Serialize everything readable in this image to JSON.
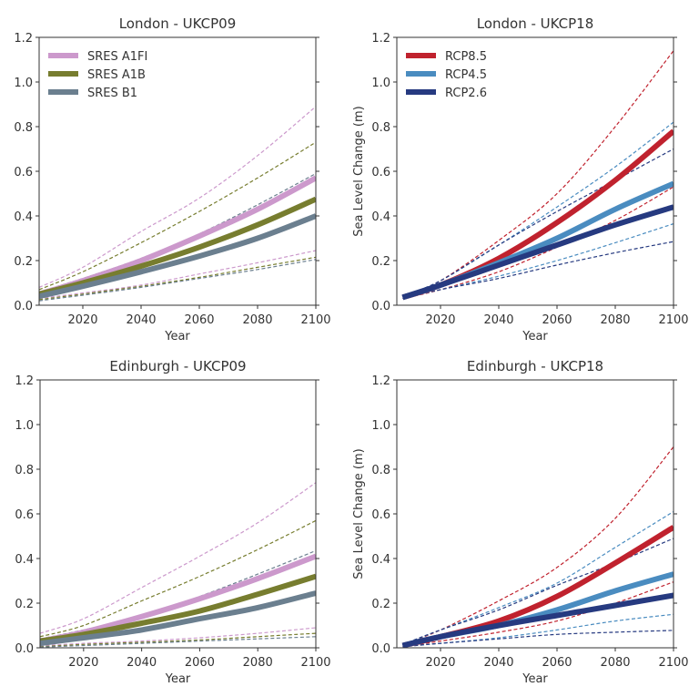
{
  "chart_data": [
    {
      "type": "line",
      "title": "London - UKCP09",
      "xlabel": "Year",
      "ylabel": "",
      "xlim": [
        2005,
        2100
      ],
      "ylim": [
        0,
        1.2
      ],
      "xticks": [
        "2020",
        "2040",
        "2060",
        "2080",
        "2100"
      ],
      "yticks": [
        "0.0",
        "0.2",
        "0.4",
        "0.6",
        "0.8",
        "1.0",
        "1.2"
      ],
      "legend": "top-left",
      "x": [
        2005,
        2020,
        2040,
        2060,
        2080,
        2100
      ],
      "series": [
        {
          "name": "SRES A1FI",
          "color": "#cc99cc",
          "central": [
            0.05,
            0.11,
            0.2,
            0.31,
            0.43,
            0.57
          ],
          "upper": [
            0.08,
            0.17,
            0.33,
            0.48,
            0.67,
            0.89
          ],
          "lower": [
            0.03,
            0.055,
            0.09,
            0.14,
            0.19,
            0.245
          ]
        },
        {
          "name": "SRES A1B",
          "color": "#777d2f",
          "central": [
            0.05,
            0.1,
            0.175,
            0.26,
            0.36,
            0.475
          ],
          "upper": [
            0.07,
            0.15,
            0.28,
            0.42,
            0.57,
            0.73
          ],
          "lower": [
            0.025,
            0.05,
            0.085,
            0.125,
            0.17,
            0.215
          ]
        },
        {
          "name": "SRES B1",
          "color": "#6b7f8f",
          "central": [
            0.04,
            0.085,
            0.15,
            0.22,
            0.3,
            0.4
          ],
          "upper": [
            0.06,
            0.12,
            0.21,
            0.32,
            0.45,
            0.59
          ],
          "lower": [
            0.02,
            0.045,
            0.08,
            0.12,
            0.16,
            0.205
          ]
        }
      ]
    },
    {
      "type": "line",
      "title": "London - UKCP18",
      "xlabel": "Year",
      "ylabel": "Sea Level Change (m)",
      "xlim": [
        2005,
        2100
      ],
      "ylim": [
        0,
        1.2
      ],
      "xticks": [
        "2020",
        "2040",
        "2060",
        "2080",
        "2100"
      ],
      "yticks": [
        "0.0",
        "0.2",
        "0.4",
        "0.6",
        "0.8",
        "1.0",
        "1.2"
      ],
      "legend": "top-left",
      "x": [
        2007,
        2020,
        2040,
        2060,
        2080,
        2100
      ],
      "series": [
        {
          "name": "RCP8.5",
          "color": "#c0222e",
          "central": [
            0.035,
            0.09,
            0.21,
            0.37,
            0.56,
            0.78
          ],
          "upper": [
            0.04,
            0.11,
            0.29,
            0.5,
            0.8,
            1.14
          ],
          "lower": [
            0.03,
            0.07,
            0.15,
            0.26,
            0.38,
            0.53
          ]
        },
        {
          "name": "RCP4.5",
          "color": "#4a8cc0",
          "central": [
            0.035,
            0.09,
            0.19,
            0.3,
            0.43,
            0.545
          ],
          "upper": [
            0.04,
            0.11,
            0.27,
            0.44,
            0.62,
            0.82
          ],
          "lower": [
            0.03,
            0.07,
            0.13,
            0.2,
            0.28,
            0.365
          ]
        },
        {
          "name": "RCP2.6",
          "color": "#263a80",
          "central": [
            0.035,
            0.09,
            0.18,
            0.27,
            0.36,
            0.44
          ],
          "upper": [
            0.04,
            0.11,
            0.27,
            0.42,
            0.56,
            0.7
          ],
          "lower": [
            0.03,
            0.07,
            0.12,
            0.18,
            0.235,
            0.285
          ]
        }
      ]
    },
    {
      "type": "line",
      "title": "Edinburgh - UKCP09",
      "xlabel": "Year",
      "ylabel": "",
      "xlim": [
        2005,
        2100
      ],
      "ylim": [
        0,
        1.2
      ],
      "xticks": [
        "2020",
        "2040",
        "2060",
        "2080",
        "2100"
      ],
      "yticks": [
        "0.0",
        "0.2",
        "0.4",
        "0.6",
        "0.8",
        "1.0",
        "1.2"
      ],
      "x": [
        2005,
        2020,
        2040,
        2060,
        2080,
        2100
      ],
      "series": [
        {
          "color": "#cc99cc",
          "central": [
            0.03,
            0.07,
            0.14,
            0.22,
            0.31,
            0.41
          ],
          "upper": [
            0.065,
            0.13,
            0.27,
            0.41,
            0.56,
            0.74
          ],
          "lower": [
            0.008,
            0.02,
            0.03,
            0.045,
            0.065,
            0.09
          ]
        },
        {
          "color": "#777d2f",
          "central": [
            0.03,
            0.06,
            0.11,
            0.165,
            0.24,
            0.32
          ],
          "upper": [
            0.05,
            0.1,
            0.21,
            0.32,
            0.44,
            0.57
          ],
          "lower": [
            0.005,
            0.015,
            0.025,
            0.035,
            0.05,
            0.065
          ]
        },
        {
          "color": "#6b7f8f",
          "central": [
            0.02,
            0.045,
            0.08,
            0.13,
            0.18,
            0.245
          ],
          "upper": [
            0.04,
            0.08,
            0.14,
            0.23,
            0.33,
            0.435
          ],
          "lower": [
            0.003,
            0.01,
            0.02,
            0.03,
            0.04,
            0.05
          ]
        }
      ]
    },
    {
      "type": "line",
      "title": "Edinburgh - UKCP18",
      "xlabel": "Year",
      "ylabel": "Sea Level Change (m)",
      "xlim": [
        2005,
        2100
      ],
      "ylim": [
        0,
        1.2
      ],
      "xticks": [
        "2020",
        "2040",
        "2060",
        "2080",
        "2100"
      ],
      "yticks": [
        "0.0",
        "0.2",
        "0.4",
        "0.6",
        "0.8",
        "1.0",
        "1.2"
      ],
      "x": [
        2007,
        2020,
        2040,
        2060,
        2080,
        2100
      ],
      "series": [
        {
          "color": "#c0222e",
          "central": [
            0.01,
            0.05,
            0.12,
            0.23,
            0.38,
            0.54
          ],
          "upper": [
            0.015,
            0.08,
            0.21,
            0.36,
            0.58,
            0.9
          ],
          "lower": [
            0.005,
            0.03,
            0.07,
            0.12,
            0.2,
            0.295
          ]
        },
        {
          "color": "#4a8cc0",
          "central": [
            0.01,
            0.05,
            0.1,
            0.17,
            0.255,
            0.33
          ],
          "upper": [
            0.015,
            0.08,
            0.18,
            0.29,
            0.45,
            0.61
          ],
          "lower": [
            0.005,
            0.02,
            0.045,
            0.08,
            0.12,
            0.15
          ]
        },
        {
          "color": "#263a80",
          "central": [
            0.01,
            0.05,
            0.1,
            0.145,
            0.19,
            0.235
          ],
          "upper": [
            0.015,
            0.08,
            0.17,
            0.28,
            0.38,
            0.49
          ],
          "lower": [
            0.005,
            0.02,
            0.04,
            0.06,
            0.07,
            0.078
          ]
        }
      ]
    }
  ]
}
